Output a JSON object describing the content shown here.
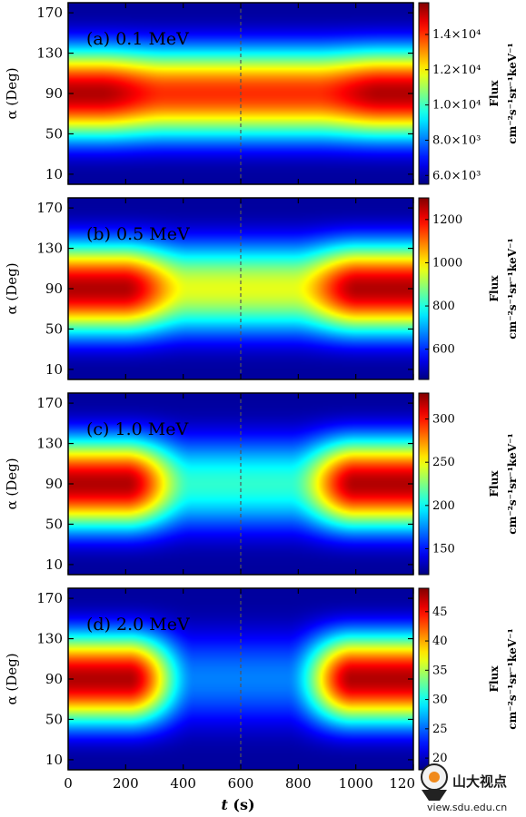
{
  "chart_data": [
    {
      "type": "heatmap",
      "title": "(a) 0.1 MeV",
      "xlabel": "t (s)",
      "ylabel": "α (Deg)",
      "xlim": [
        0,
        1200
      ],
      "ylim": [
        0,
        180
      ],
      "x_ticks": [
        "0",
        "200",
        "400",
        "600",
        "800",
        "1000",
        "120"
      ],
      "y_ticks": [
        "10",
        "50",
        "90",
        "130",
        "170"
      ],
      "marker_line_x": 600,
      "colorbar": {
        "label": "Flux",
        "units": "cm⁻²s⁻¹sr⁻¹keV⁻¹",
        "range": [
          5500,
          15800
        ],
        "ticks": [
          {
            "value": 6000,
            "label": "6.0×10³"
          },
          {
            "value": 8000,
            "label": "8.0×10³"
          },
          {
            "value": 10000,
            "label": "1.0×10⁴"
          },
          {
            "value": 12000,
            "label": "1.2×10⁴"
          },
          {
            "value": 14000,
            "label": "1.4×10⁴"
          }
        ]
      },
      "flux_profile": {
        "edge_level": 0.95,
        "center_level": 0.83,
        "dip_width": 320
      }
    },
    {
      "type": "heatmap",
      "title": "(b) 0.5 MeV",
      "xlabel": "t (s)",
      "ylabel": "α (Deg)",
      "xlim": [
        0,
        1200
      ],
      "ylim": [
        0,
        180
      ],
      "x_ticks": [
        "0",
        "200",
        "400",
        "600",
        "800",
        "1000",
        "120"
      ],
      "y_ticks": [
        "10",
        "50",
        "90",
        "130",
        "170"
      ],
      "marker_line_x": 600,
      "colorbar": {
        "label": "Flux",
        "units": "cm⁻²s⁻¹sr⁻¹keV⁻¹",
        "range": [
          460,
          1300
        ],
        "ticks": [
          {
            "value": 600,
            "label": "600"
          },
          {
            "value": 800,
            "label": "800"
          },
          {
            "value": 1000,
            "label": "1000"
          },
          {
            "value": 1200,
            "label": "1200"
          }
        ]
      },
      "flux_profile": {
        "edge_level": 0.95,
        "center_level": 0.6,
        "dip_width": 240
      }
    },
    {
      "type": "heatmap",
      "title": "(c) 1.0 MeV",
      "xlabel": "t (s)",
      "ylabel": "α (Deg)",
      "xlim": [
        0,
        1200
      ],
      "ylim": [
        0,
        180
      ],
      "x_ticks": [
        "0",
        "200",
        "400",
        "600",
        "800",
        "1000",
        "120"
      ],
      "y_ticks": [
        "10",
        "50",
        "90",
        "130",
        "170"
      ],
      "marker_line_x": 600,
      "colorbar": {
        "label": "Flux",
        "units": "cm⁻²s⁻¹sr⁻¹keV⁻¹",
        "range": [
          120,
          330
        ],
        "ticks": [
          {
            "value": 150,
            "label": "150"
          },
          {
            "value": 200,
            "label": "200"
          },
          {
            "value": 250,
            "label": "250"
          },
          {
            "value": 300,
            "label": "300"
          }
        ]
      },
      "flux_profile": {
        "edge_level": 0.95,
        "center_level": 0.42,
        "dip_width": 230
      }
    },
    {
      "type": "heatmap",
      "title": "(d) 2.0 MeV",
      "xlabel": "t (s)",
      "ylabel": "α (Deg)",
      "xlim": [
        0,
        1200
      ],
      "ylim": [
        0,
        180
      ],
      "x_ticks": [
        "0",
        "200",
        "400",
        "600",
        "800",
        "1000",
        "120"
      ],
      "y_ticks": [
        "10",
        "50",
        "90",
        "130",
        "170"
      ],
      "marker_line_x": 600,
      "colorbar": {
        "label": "Flux",
        "units": "cm⁻²s⁻¹sr⁻¹keV⁻¹",
        "range": [
          18,
          49
        ],
        "ticks": [
          {
            "value": 20,
            "label": "20"
          },
          {
            "value": 25,
            "label": "25"
          },
          {
            "value": 30,
            "label": "30"
          },
          {
            "value": 35,
            "label": "35"
          },
          {
            "value": 40,
            "label": "40"
          },
          {
            "value": 45,
            "label": "45"
          }
        ]
      },
      "flux_profile": {
        "edge_level": 0.95,
        "center_level": 0.25,
        "dip_width": 220
      }
    }
  ],
  "x_axis_title": {
    "italic": "t",
    "rest": " (s)"
  },
  "watermark": {
    "brand": "山大视点",
    "url": "view.sdu.edu.cn"
  }
}
